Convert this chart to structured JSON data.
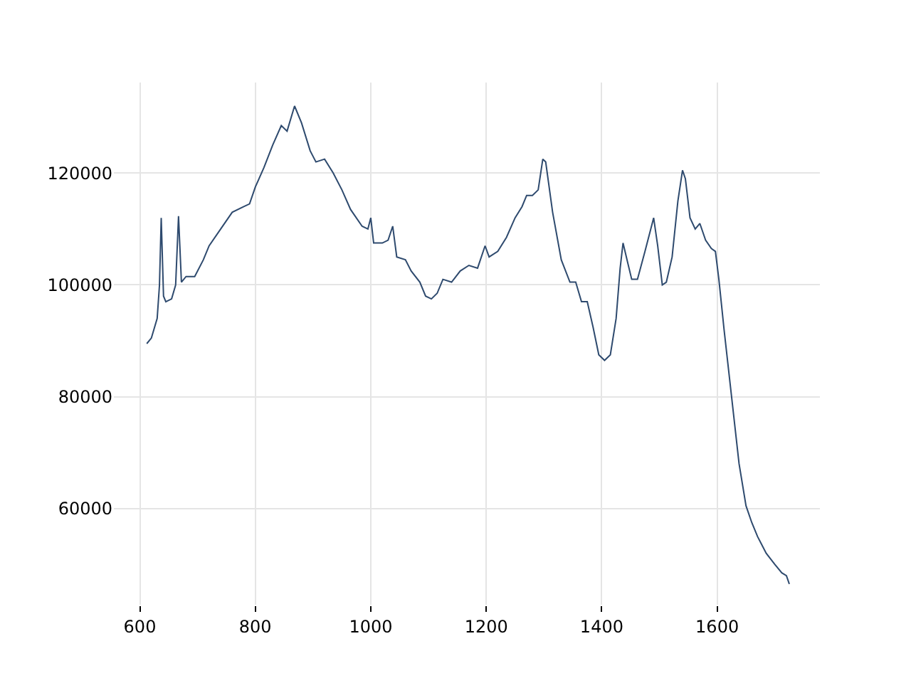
{
  "chart_data": {
    "type": "line",
    "xlim": [
      555,
      1778
    ],
    "ylim": [
      42800,
      136200
    ],
    "xticks": [
      600,
      800,
      1000,
      1200,
      1400,
      1600
    ],
    "yticks": [
      60000,
      80000,
      100000,
      120000
    ],
    "grid": true,
    "series": [
      {
        "color": "#2e4a6e",
        "x": [
          612,
          620,
          630,
          634,
          637,
          641,
          645,
          655,
          662,
          667,
          672,
          680,
          695,
          710,
          720,
          740,
          760,
          780,
          790,
          800,
          815,
          830,
          845,
          855,
          868,
          880,
          895,
          905,
          920,
          935,
          950,
          965,
          985,
          995,
          1000,
          1005,
          1020,
          1030,
          1038,
          1045,
          1060,
          1070,
          1085,
          1095,
          1105,
          1115,
          1125,
          1140,
          1155,
          1170,
          1185,
          1198,
          1205,
          1220,
          1235,
          1250,
          1262,
          1270,
          1280,
          1290,
          1298,
          1303,
          1315,
          1330,
          1345,
          1355,
          1365,
          1375,
          1385,
          1395,
          1405,
          1415,
          1425,
          1432,
          1437,
          1445,
          1452,
          1462,
          1475,
          1485,
          1490,
          1497,
          1505,
          1512,
          1522,
          1532,
          1540,
          1545,
          1553,
          1562,
          1570,
          1580,
          1590,
          1597,
          1603,
          1612,
          1625,
          1638,
          1650,
          1660,
          1670,
          1685,
          1700,
          1712,
          1720,
          1725
        ],
        "values": [
          89500,
          90500,
          94000,
          100000,
          112000,
          98000,
          97000,
          97500,
          100000,
          112300,
          100500,
          101500,
          101500,
          104500,
          107000,
          110000,
          113000,
          114000,
          114500,
          117500,
          121000,
          125000,
          128500,
          127500,
          132000,
          129000,
          124000,
          122000,
          122500,
          120000,
          117000,
          113500,
          110500,
          110000,
          112000,
          107500,
          107500,
          108000,
          110500,
          105000,
          104500,
          102500,
          100500,
          98000,
          97500,
          98500,
          101000,
          100500,
          102500,
          103500,
          103000,
          107000,
          105000,
          106000,
          108500,
          112000,
          114000,
          116000,
          116000,
          117000,
          122500,
          122000,
          113000,
          104500,
          100500,
          100500,
          97000,
          97000,
          92500,
          87500,
          86500,
          87500,
          94000,
          103000,
          107500,
          104000,
          101000,
          101000,
          106000,
          110000,
          112000,
          107000,
          100000,
          100500,
          105000,
          115000,
          120500,
          119000,
          112000,
          110000,
          111000,
          108000,
          106500,
          106000,
          101000,
          92000,
          80000,
          68000,
          60500,
          57500,
          55000,
          52000,
          50000,
          48500,
          48000,
          46500
        ]
      }
    ]
  }
}
